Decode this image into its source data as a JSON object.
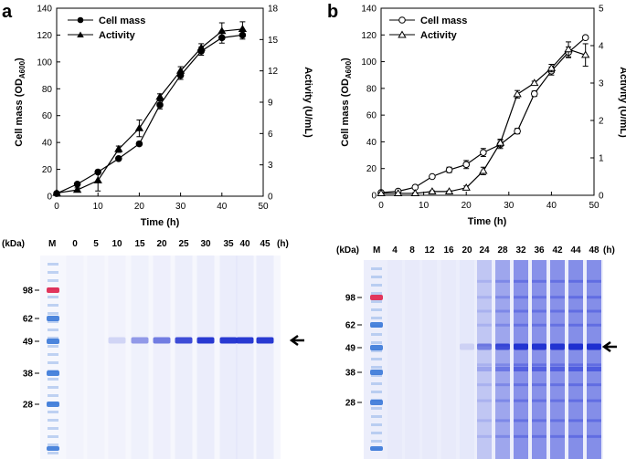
{
  "chart_data": [
    {
      "panel": "a",
      "type": "line",
      "xlabel": "Time (h)",
      "ylabel": "Cell mass (OD",
      "ylabel_sub": "A600",
      "ylabel_end": ")",
      "y2label": "Activity (U/mL)",
      "xlim": [
        0,
        50
      ],
      "ylim": [
        0,
        140
      ],
      "y2lim": [
        0,
        18
      ],
      "xticks": [
        0,
        10,
        20,
        30,
        40,
        50
      ],
      "yticks": [
        0,
        20,
        40,
        60,
        80,
        100,
        120,
        140
      ],
      "y2ticks": [
        0,
        3,
        6,
        9,
        12,
        15,
        18
      ],
      "series": [
        {
          "name": "Cell mass",
          "axis": "left",
          "marker": "circle",
          "filled": true,
          "x": [
            0,
            5,
            10,
            15,
            20,
            25,
            30,
            35,
            40,
            45
          ],
          "y": [
            2,
            9,
            18,
            28,
            39,
            68,
            90,
            108,
            118,
            120
          ],
          "err": [
            1,
            1,
            1,
            1,
            1,
            3,
            3,
            3,
            4,
            3
          ]
        },
        {
          "name": "Activity",
          "axis": "right",
          "marker": "triangle",
          "filled": true,
          "x": [
            0,
            5,
            10,
            15,
            20,
            25,
            30,
            35,
            40,
            45
          ],
          "y": [
            0.3,
            0.6,
            1.5,
            4.5,
            6.5,
            9.5,
            12.0,
            14.2,
            15.8,
            16.0
          ],
          "err": [
            0.1,
            0.2,
            1.0,
            0.3,
            0.8,
            0.3,
            0.4,
            0.4,
            0.8,
            0.7
          ]
        }
      ]
    },
    {
      "panel": "b",
      "type": "line",
      "xlabel": "Time (h)",
      "ylabel": "Cell mass (OD",
      "ylabel_sub": "A600",
      "ylabel_end": ")",
      "y2label": "Activity (U/mL)",
      "xlim": [
        0,
        50
      ],
      "ylim": [
        0,
        140
      ],
      "y2lim": [
        0,
        5
      ],
      "xticks": [
        0,
        10,
        20,
        30,
        40,
        50
      ],
      "yticks": [
        0,
        20,
        40,
        60,
        80,
        100,
        120,
        140
      ],
      "y2ticks": [
        0,
        1,
        2,
        3,
        4,
        5
      ],
      "series": [
        {
          "name": "Cell mass",
          "axis": "left",
          "marker": "circle",
          "filled": false,
          "x": [
            0,
            4,
            8,
            12,
            16,
            20,
            24,
            28,
            32,
            36,
            40,
            44,
            48
          ],
          "y": [
            2,
            3,
            6,
            14,
            19,
            23,
            32,
            38,
            48,
            76,
            93,
            107,
            118
          ],
          "err": [
            1,
            1,
            1,
            1,
            2,
            3,
            3,
            3,
            2,
            2,
            3,
            4,
            1
          ]
        },
        {
          "name": "Activity",
          "axis": "right",
          "marker": "triangle",
          "filled": false,
          "x": [
            0,
            4,
            8,
            12,
            16,
            20,
            24,
            28,
            32,
            36,
            40,
            44,
            48
          ],
          "y": [
            0.05,
            0.05,
            0.05,
            0.1,
            0.1,
            0.2,
            0.65,
            1.4,
            2.7,
            3.0,
            3.4,
            3.9,
            3.75
          ],
          "err": [
            0.02,
            0.02,
            0.02,
            0.02,
            0.02,
            0.05,
            0.1,
            0.1,
            0.1,
            0.05,
            0.1,
            0.2,
            0.3
          ]
        }
      ]
    }
  ],
  "gels": [
    {
      "panel": "a",
      "kda_label": "(kDa)",
      "marker_label": "M",
      "time_unit": "(h)",
      "lanes": [
        "0",
        "5",
        "10",
        "15",
        "20",
        "25",
        "30",
        "35",
        "40",
        "45"
      ],
      "ladder": [
        "98",
        "62",
        "49",
        "38",
        "28"
      ],
      "band_intensity": [
        0,
        0,
        0.05,
        0.35,
        0.5,
        0.75,
        0.85,
        0.85,
        0.85,
        0.85
      ]
    },
    {
      "panel": "b",
      "kda_label": "(kDa)",
      "marker_label": "M",
      "time_unit": "(h)",
      "lanes": [
        "4",
        "8",
        "12",
        "16",
        "20",
        "24",
        "28",
        "32",
        "36",
        "42",
        "44",
        "48"
      ],
      "ladder": [
        "98",
        "62",
        "49",
        "38",
        "28"
      ],
      "band_intensity": [
        0,
        0,
        0,
        0,
        0.02,
        0.35,
        0.65,
        0.85,
        0.85,
        0.85,
        0.9,
        0.9
      ]
    }
  ],
  "colors": {
    "line": "#000000",
    "stain": "#2f3fd9",
    "ladder": "#3a78d8",
    "ladder_red": "#e0204a"
  }
}
